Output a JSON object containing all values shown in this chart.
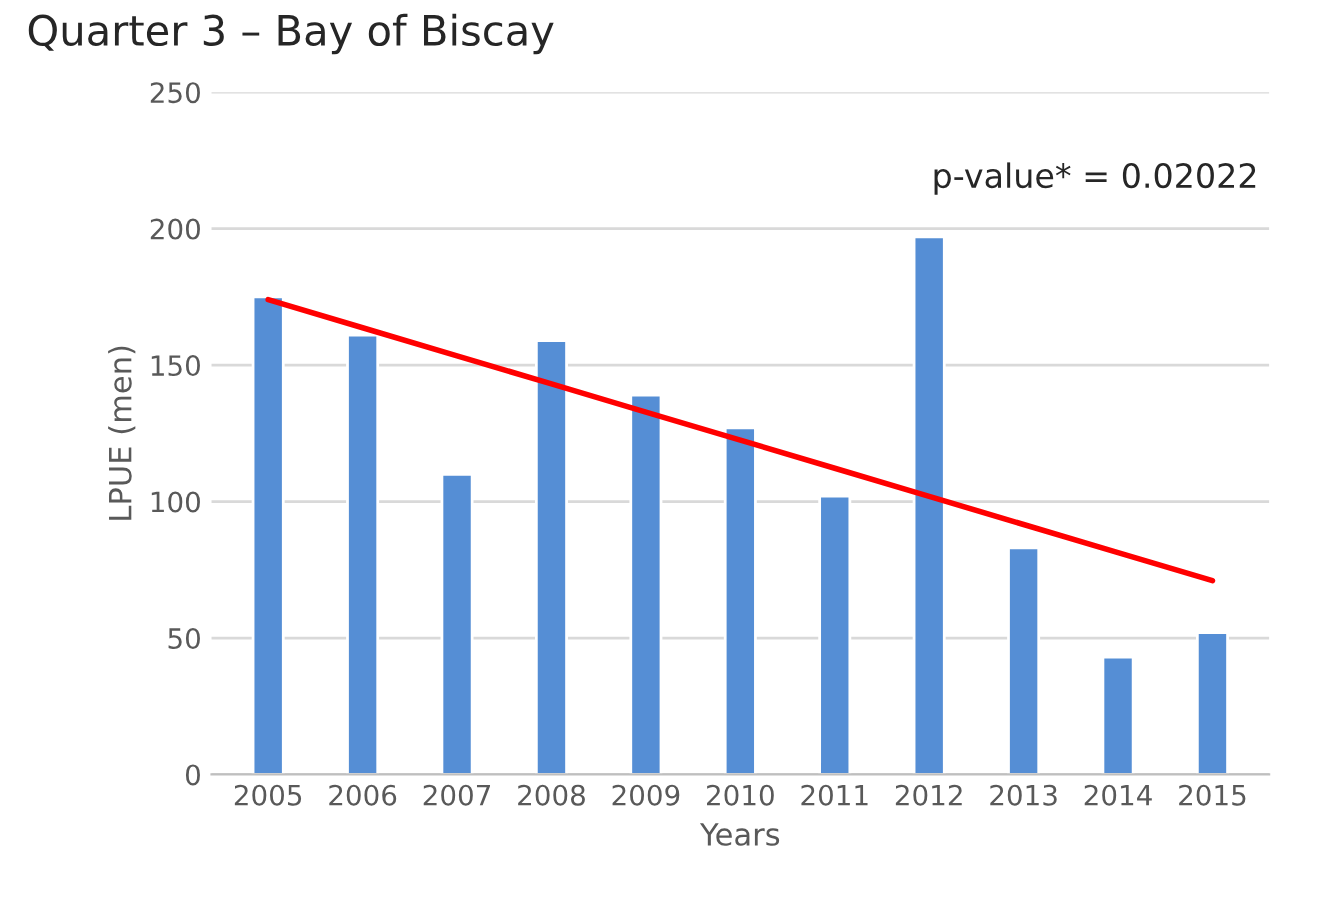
{
  "chart_data": {
    "type": "bar",
    "title": "Quarter 3 – Bay of Biscay",
    "xlabel": "Years",
    "ylabel": "LPUE (men)",
    "categories": [
      "2005",
      "2006",
      "2007",
      "2008",
      "2009",
      "2010",
      "2011",
      "2012",
      "2013",
      "2014",
      "2015"
    ],
    "series": [
      {
        "color": "#558ed5",
        "values": [
          175,
          161,
          110,
          159,
          139,
          127,
          102,
          197,
          83,
          43,
          52
        ]
      },
      {
        "type": "line",
        "color": "#ff0000",
        "values": [
          174,
          163.7,
          153.4,
          143.1,
          132.8,
          122.5,
          112.2,
          101.9,
          91.6,
          81.3,
          71
        ]
      }
    ],
    "ylim": [
      0,
      250
    ],
    "yticks": [
      0,
      50,
      100,
      150,
      200,
      250
    ],
    "grid": "y",
    "legend": false,
    "annotations": [
      "p-value* = 0.02022"
    ]
  }
}
